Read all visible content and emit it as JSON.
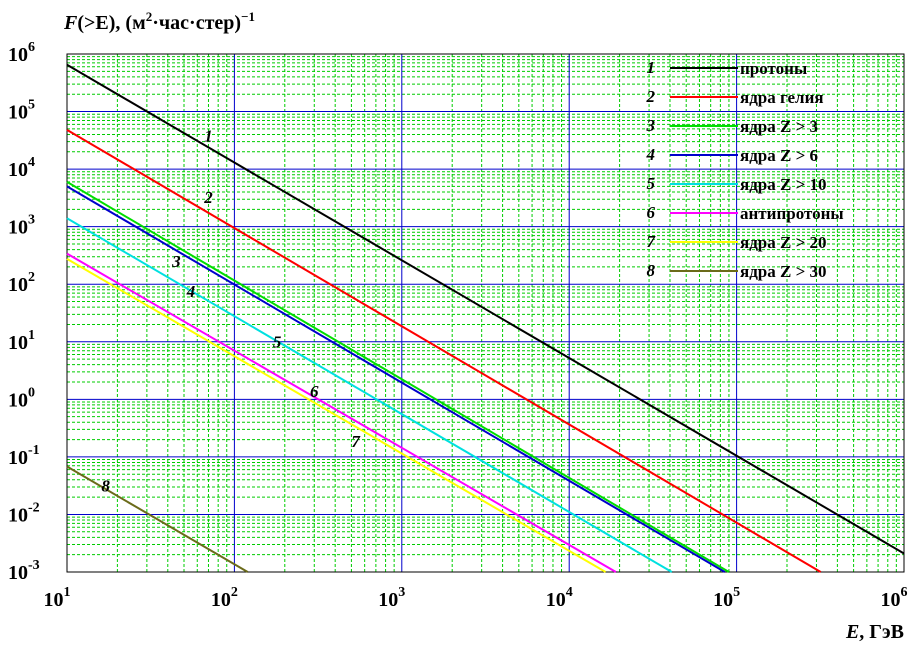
{
  "chart_data": {
    "type": "line",
    "title": "",
    "ylabel": {
      "var": "F",
      "cond": "(>E), ",
      "unit_open": "(м",
      "unit_exp": "2",
      "unit_rest": "·час·стер)",
      "unit_pow": "−1"
    },
    "xlabel": {
      "var": "E",
      "unit": ", ГэВ"
    },
    "x_scale": "log",
    "y_scale": "log",
    "xlim": [
      10,
      1000000
    ],
    "ylim": [
      0.001,
      1000000
    ],
    "grid": true,
    "legend_position": "top-right",
    "x_ticks": [
      {
        "value": 10,
        "base": "10",
        "exp": "1"
      },
      {
        "value": 100,
        "base": "10",
        "exp": "2"
      },
      {
        "value": 1000,
        "base": "10",
        "exp": "3"
      },
      {
        "value": 10000,
        "base": "10",
        "exp": "4"
      },
      {
        "value": 100000,
        "base": "10",
        "exp": "5"
      },
      {
        "value": 1000000,
        "base": "10",
        "exp": "6"
      }
    ],
    "y_ticks": [
      {
        "value": 0.001,
        "base": "10",
        "exp": "-3"
      },
      {
        "value": 0.01,
        "base": "10",
        "exp": "-2"
      },
      {
        "value": 0.1,
        "base": "10",
        "exp": "-1"
      },
      {
        "value": 1,
        "base": "10",
        "exp": "0"
      },
      {
        "value": 10,
        "base": "10",
        "exp": "1"
      },
      {
        "value": 100,
        "base": "10",
        "exp": "2"
      },
      {
        "value": 1000,
        "base": "10",
        "exp": "3"
      },
      {
        "value": 10000,
        "base": "10",
        "exp": "4"
      },
      {
        "value": 100000,
        "base": "10",
        "exp": "5"
      },
      {
        "value": 1000000,
        "base": "10",
        "exp": "6"
      }
    ],
    "series": [
      {
        "number": "1",
        "name": "протоны",
        "color": "#000000",
        "x": [
          10,
          1000000
        ],
        "y": [
          650000,
          0.0021
        ],
        "label_at": {
          "x": 70,
          "y": 30000
        }
      },
      {
        "number": "2",
        "name": "ядра гелия",
        "color": "#ff0000",
        "x": [
          10,
          318000
        ],
        "y": [
          48000,
          0.001
        ],
        "label_at": {
          "x": 70,
          "y": 2600
        }
      },
      {
        "number": "3",
        "name": "ядра Z > 3",
        "color": "#00dd00",
        "x": [
          10,
          90000
        ],
        "y": [
          6000,
          0.001
        ],
        "label_at": {
          "x": 45,
          "y": 200
        }
      },
      {
        "number": "4",
        "name": "ядра Z > 6",
        "color": "#0000cc",
        "x": [
          10,
          85000
        ],
        "y": [
          5000,
          0.001
        ],
        "label_at": {
          "x": 55,
          "y": 60
        }
      },
      {
        "number": "5",
        "name": "ядра Z > 10",
        "color": "#00e0e0",
        "x": [
          10,
          41000
        ],
        "y": [
          1400,
          0.001
        ],
        "label_at": {
          "x": 180,
          "y": 8
        }
      },
      {
        "number": "6",
        "name": "антипротоны",
        "color": "#ff00ff",
        "x": [
          10,
          19000
        ],
        "y": [
          340,
          0.001
        ],
        "label_at": {
          "x": 300,
          "y": 1.1
        }
      },
      {
        "number": "7",
        "name": "ядра Z > 20",
        "color": "#ffff00",
        "x": [
          10,
          16500
        ],
        "y": [
          275,
          0.001
        ],
        "label_at": {
          "x": 530,
          "y": 0.15
        }
      },
      {
        "number": "8",
        "name": "ядра Z > 30",
        "color": "#6b6b1a",
        "x": [
          10,
          120
        ],
        "y": [
          0.068,
          0.001
        ],
        "label_at": {
          "x": 17,
          "y": 0.025
        }
      }
    ]
  }
}
